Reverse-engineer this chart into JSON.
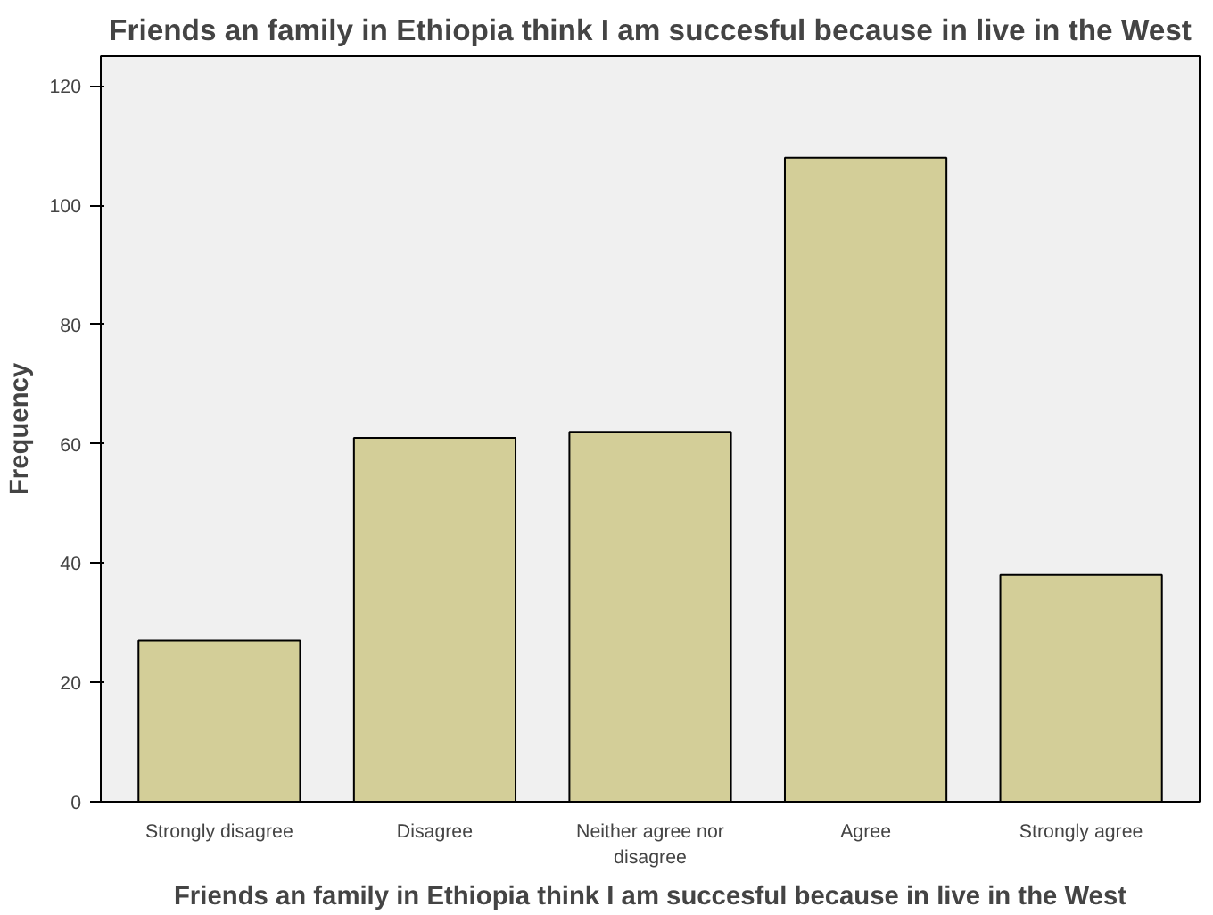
{
  "chart_data": {
    "type": "bar",
    "title": "Friends an family in Ethiopia think I am succesful because in live in the West",
    "xlabel": "Friends an family in Ethiopia think I am succesful because in live in the West",
    "ylabel": "Frequency",
    "categories": [
      "Strongly disagree",
      "Disagree",
      "Neither agree nor disagree",
      "Agree",
      "Strongly agree"
    ],
    "values": [
      27,
      61,
      62,
      108,
      38
    ],
    "color": "#d3ce98",
    "ylim": [
      0,
      125
    ],
    "yticks": [
      0,
      20,
      40,
      60,
      80,
      100,
      120
    ],
    "grid": false
  }
}
